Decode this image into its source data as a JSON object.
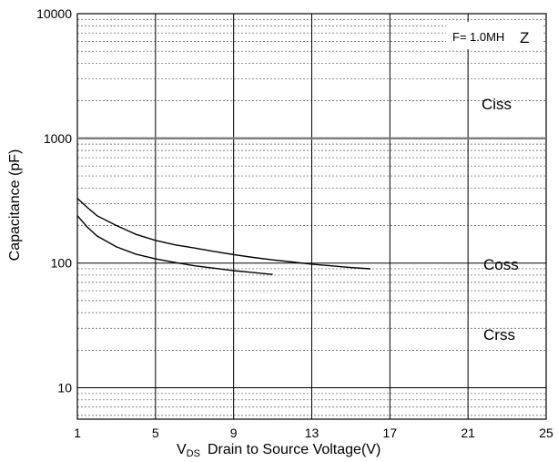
{
  "chart_data": {
    "type": "line",
    "xlabel_main": "V",
    "xlabel_sub": "DS",
    "xlabel_rest": "Drain to Source Voltage(V)",
    "ylabel": "Capacitance (pF)",
    "xlim": [
      1,
      25
    ],
    "ylim": [
      5.6,
      10000
    ],
    "yscale": "log",
    "x_ticks": [
      "1",
      "5",
      "9",
      "13",
      "17",
      "21",
      "25"
    ],
    "x_tick_values": [
      1,
      5,
      9,
      13,
      17,
      21,
      25
    ],
    "y_ticks": [
      "10000",
      "1000",
      "100",
      "10"
    ],
    "y_tick_values": [
      10000,
      1000,
      100,
      10
    ],
    "grid": true,
    "legend": "none",
    "annotations": {
      "frequency_prefix": "F=",
      "frequency_value": "1.0MH",
      "frequency_unit": "Z"
    },
    "series": [
      {
        "name": "Ciss",
        "color": "#7a7a7a",
        "x": [
          1,
          5,
          9,
          13,
          17,
          21,
          25
        ],
        "y": [
          1000,
          1000,
          1000,
          1000,
          1000,
          1000,
          1000
        ]
      },
      {
        "name": "Coss",
        "color": "#000000",
        "x": [
          1,
          1.5,
          2,
          3,
          4,
          5,
          6,
          7,
          8,
          9,
          10,
          11,
          12,
          13,
          14,
          15,
          16
        ],
        "y": [
          330,
          280,
          240,
          200,
          170,
          152,
          140,
          132,
          124,
          117,
          111,
          106,
          102,
          98,
          95,
          92,
          90
        ]
      },
      {
        "name": "Crss",
        "color": "#000000",
        "x": [
          1,
          1.5,
          2,
          3,
          4,
          5,
          6,
          7,
          8,
          9,
          10,
          11
        ],
        "y": [
          240,
          195,
          165,
          135,
          118,
          108,
          101,
          95,
          91,
          87,
          84,
          81
        ]
      }
    ]
  }
}
